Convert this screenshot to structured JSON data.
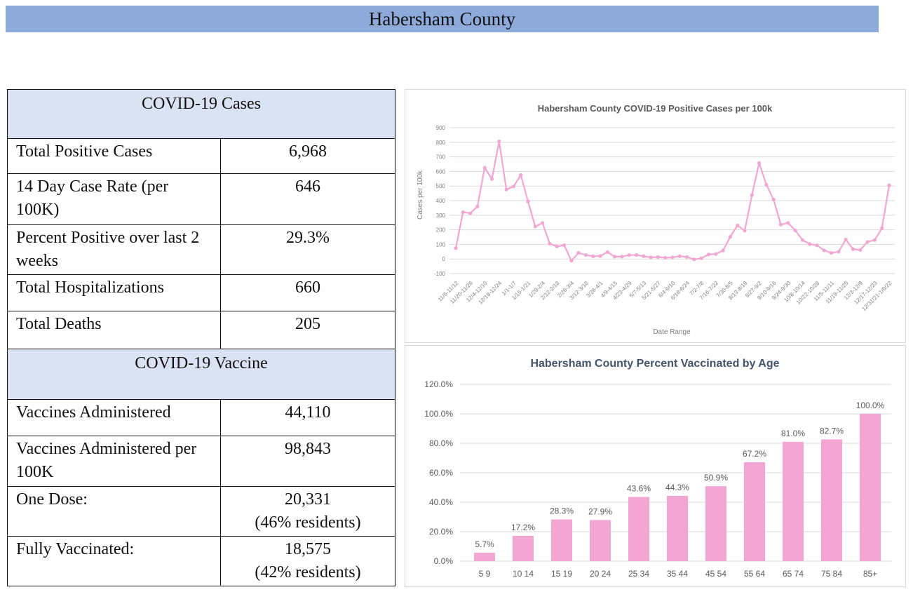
{
  "header": {
    "title": "Habersham County"
  },
  "cases": {
    "title": "COVID-19 Cases",
    "rows": [
      {
        "label": "Total Positive Cases",
        "value": "6,968"
      },
      {
        "label": "14 Day Case Rate (per 100K)",
        "value": "646"
      },
      {
        "label": "Percent Positive over last 2 weeks",
        "value": "29.3%"
      },
      {
        "label": "Total Hospitalizations",
        "value": "660"
      },
      {
        "label": "Total Deaths",
        "value": "205"
      }
    ]
  },
  "vaccine": {
    "title": "COVID-19 Vaccine",
    "rows": [
      {
        "label": "Vaccines Administered",
        "value": "44,110",
        "sub": ""
      },
      {
        "label": "Vaccines Administered per 100K",
        "value": "98,843",
        "sub": ""
      },
      {
        "label": "One Dose:",
        "value": "20,331",
        "sub": "(46% residents)"
      },
      {
        "label": "Fully Vaccinated:",
        "value": "18,575",
        "sub": "(42% residents)"
      }
    ]
  },
  "chart_data": [
    {
      "type": "line",
      "title": "Habersham County COVID-19 Positive Cases per 100k",
      "xlabel": "Date Range",
      "ylabel": "Cases per 100k",
      "ylim": [
        -100,
        900
      ],
      "yticks": [
        -100,
        0,
        100,
        200,
        300,
        400,
        500,
        600,
        700,
        800,
        900
      ],
      "grid": true,
      "color": "#f2a7d3",
      "x_tick_labels": [
        "11/6-11/12",
        "11/20-11/26",
        "12/4-12/10",
        "12/18-12/24",
        "1/1-1/7",
        "1/15-1/21",
        "1/29-2/4",
        "2/12-2/18",
        "2/26-3/4",
        "3/12-3/18",
        "3/26-4/1",
        "4/9-4/15",
        "4/23-4/29",
        "5/7-5/13",
        "5/21-5/27",
        "6/4-6/10",
        "6/18-6/24",
        "7/2-7/8",
        "7/16-7/22",
        "7/30-8/5",
        "8/13-8/19",
        "8/27-9/2",
        "9/10-9/16",
        "9/24-9/30",
        "10/8-10/14",
        "10/22-10/28",
        "11/5-11/11",
        "11/19-11/25",
        "12/3-12/9",
        "12/17-12/23",
        "12/31/21-1/6/22"
      ],
      "values": [
        74,
        321,
        313,
        360,
        626,
        548,
        806,
        476,
        497,
        575,
        394,
        222,
        247,
        105,
        86,
        94,
        -12,
        42,
        27,
        19,
        20,
        47,
        16,
        16,
        27,
        27,
        19,
        11,
        13,
        8,
        11,
        19,
        14,
        -3,
        5,
        31,
        34,
        58,
        152,
        230,
        194,
        438,
        657,
        509,
        407,
        235,
        247,
        196,
        130,
        102,
        94,
        59,
        42,
        50,
        133,
        67,
        62,
        117,
        130,
        211,
        505
      ]
    },
    {
      "type": "bar",
      "title": "Habersham County Percent Vaccinated by Age",
      "ylim": [
        0,
        120
      ],
      "yticks": [
        "0.0%",
        "20.0%",
        "40.0%",
        "60.0%",
        "80.0%",
        "100.0%",
        "120.0%"
      ],
      "grid": true,
      "color": "#f4a6d2",
      "categories": [
        "5 9",
        "10 14",
        "15 19",
        "20 24",
        "25 34",
        "35 44",
        "45 54",
        "55 64",
        "65 74",
        "75 84",
        "85+"
      ],
      "values": [
        5.7,
        17.2,
        28.3,
        27.9,
        43.6,
        44.3,
        50.9,
        67.2,
        81.0,
        82.7,
        100.0
      ],
      "data_labels": [
        "5.7%",
        "17.2%",
        "28.3%",
        "27.9%",
        "43.6%",
        "44.3%",
        "50.9%",
        "67.2%",
        "81.0%",
        "82.7%",
        "100.0%"
      ]
    }
  ]
}
